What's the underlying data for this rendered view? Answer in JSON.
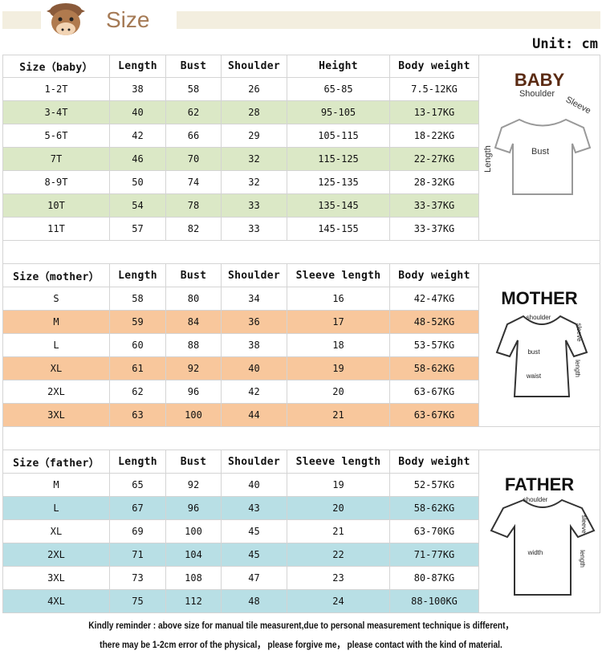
{
  "header": {
    "title": "Size",
    "unit": "Unit: cm"
  },
  "sections": [
    {
      "columns": [
        "Size（baby）",
        "Length",
        "Bust",
        "Shoulder",
        "Height",
        "Body weight"
      ],
      "stripe_color": "#dbe8c6",
      "rows": [
        [
          "1-2T",
          38,
          58,
          26,
          "65-85",
          "7.5-12KG"
        ],
        [
          "3-4T",
          40,
          62,
          28,
          "95-105",
          "13-17KG"
        ],
        [
          "5-6T",
          42,
          66,
          29,
          "105-115",
          "18-22KG"
        ],
        [
          "7T",
          46,
          70,
          32,
          "115-125",
          "22-27KG"
        ],
        [
          "8-9T",
          50,
          74,
          32,
          "125-135",
          "28-32KG"
        ],
        [
          "10T",
          54,
          78,
          33,
          "135-145",
          "33-37KG"
        ],
        [
          "11T",
          57,
          82,
          33,
          "145-155",
          "33-37KG"
        ]
      ],
      "figure": {
        "title": "BABY",
        "labels": [
          "Shoulder",
          "Sleeve",
          "Length",
          "Bust"
        ]
      }
    },
    {
      "columns": [
        "Size（mother）",
        "Length",
        "Bust",
        "Shoulder",
        "Sleeve length",
        "Body weight"
      ],
      "stripe_color": "#f8c79c",
      "rows": [
        [
          "S",
          58,
          80,
          34,
          16,
          "42-47KG"
        ],
        [
          "M",
          59,
          84,
          36,
          17,
          "48-52KG"
        ],
        [
          "L",
          60,
          88,
          38,
          18,
          "53-57KG"
        ],
        [
          "XL",
          61,
          92,
          40,
          19,
          "58-62KG"
        ],
        [
          "2XL",
          62,
          96,
          42,
          20,
          "63-67KG"
        ],
        [
          "3XL",
          63,
          100,
          44,
          21,
          "63-67KG"
        ]
      ],
      "figure": {
        "title": "MOTHER",
        "labels": [
          "shoulder",
          "sleeve",
          "bust",
          "waist",
          "length"
        ]
      }
    },
    {
      "columns": [
        "Size（father）",
        "Length",
        "Bust",
        "Shoulder",
        "Sleeve length",
        "Body weight"
      ],
      "stripe_color": "#b8dfe5",
      "rows": [
        [
          "M",
          65,
          92,
          40,
          19,
          "52-57KG"
        ],
        [
          "L",
          67,
          96,
          43,
          20,
          "58-62KG"
        ],
        [
          "XL",
          69,
          100,
          45,
          21,
          "63-70KG"
        ],
        [
          "2XL",
          71,
          104,
          45,
          22,
          "71-77KG"
        ],
        [
          "3XL",
          73,
          108,
          47,
          23,
          "80-87KG"
        ],
        [
          "4XL",
          75,
          112,
          48,
          24,
          "88-100KG"
        ]
      ],
      "figure": {
        "title": "FATHER",
        "labels": [
          "shoulder",
          "sleeve",
          "width",
          "length"
        ]
      }
    }
  ],
  "footer": [
    "Kindly reminder : above size for manual tile measurent,due to personal measurement technique is different，",
    "there may be 1-2cm error of the physical， please forgive me， please contact with the kind of material."
  ]
}
